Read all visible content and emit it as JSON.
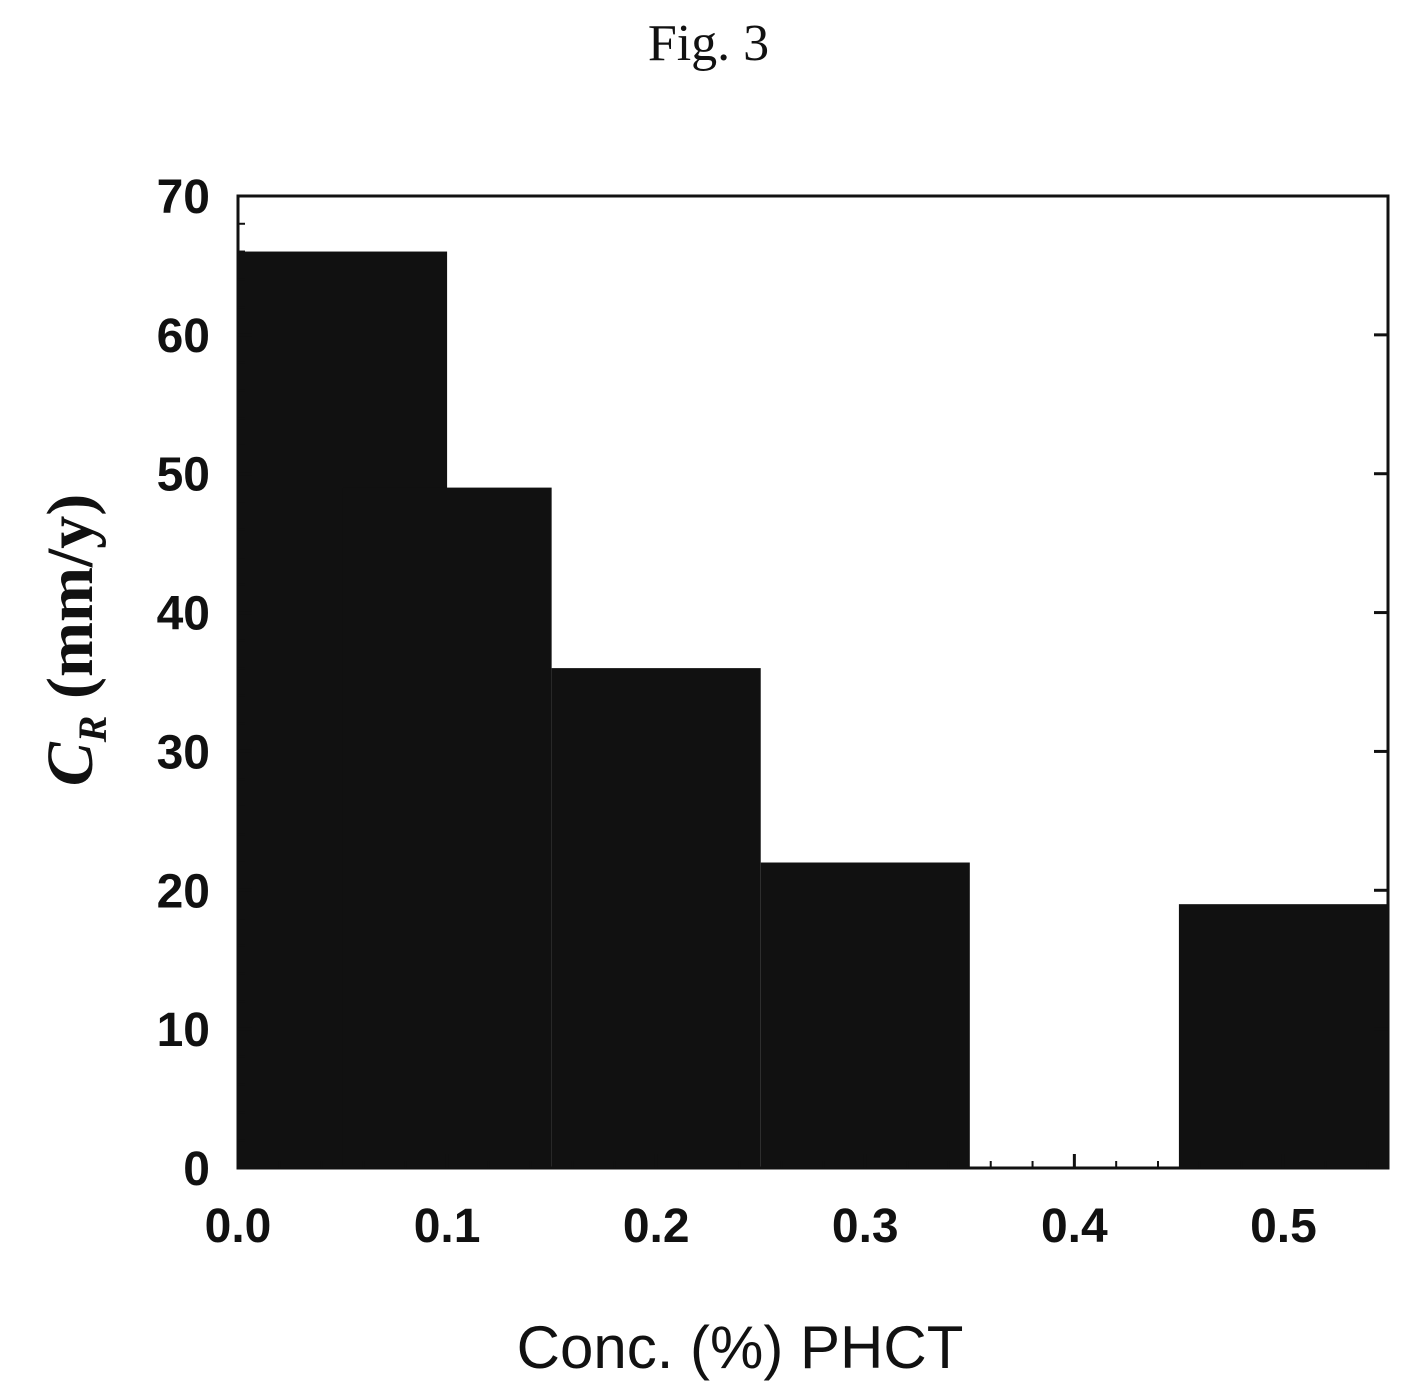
{
  "figure": {
    "title": "Fig. 3"
  },
  "colors": {
    "bar": "#111111",
    "axis": "#111111",
    "background": "#ffffff"
  },
  "chart_data": {
    "type": "bar",
    "title": "",
    "xlabel": "Conc. (%) PHCT",
    "ylabel": "C_R (mm/y)",
    "ylabel_main": "C",
    "ylabel_sub": "R",
    "ylabel_unit": " (mm/y)",
    "xlim": [
      0.0,
      0.55
    ],
    "ylim": [
      0,
      70
    ],
    "x_ticks": [
      0.0,
      0.1,
      0.2,
      0.3,
      0.4,
      0.5
    ],
    "x_tick_labels": [
      "0.0",
      "0.1",
      "0.2",
      "0.3",
      "0.4",
      "0.5"
    ],
    "y_ticks": [
      0,
      10,
      20,
      30,
      40,
      50,
      60,
      70
    ],
    "y_tick_labels": [
      "0",
      "10",
      "20",
      "30",
      "40",
      "50",
      "60",
      "70"
    ],
    "bar_width": 0.05,
    "x": [
      0.05,
      0.1,
      0.2,
      0.3,
      0.4,
      0.5
    ],
    "values": [
      66,
      49,
      36,
      22,
      0,
      19
    ],
    "grid": false,
    "legend": "none"
  }
}
